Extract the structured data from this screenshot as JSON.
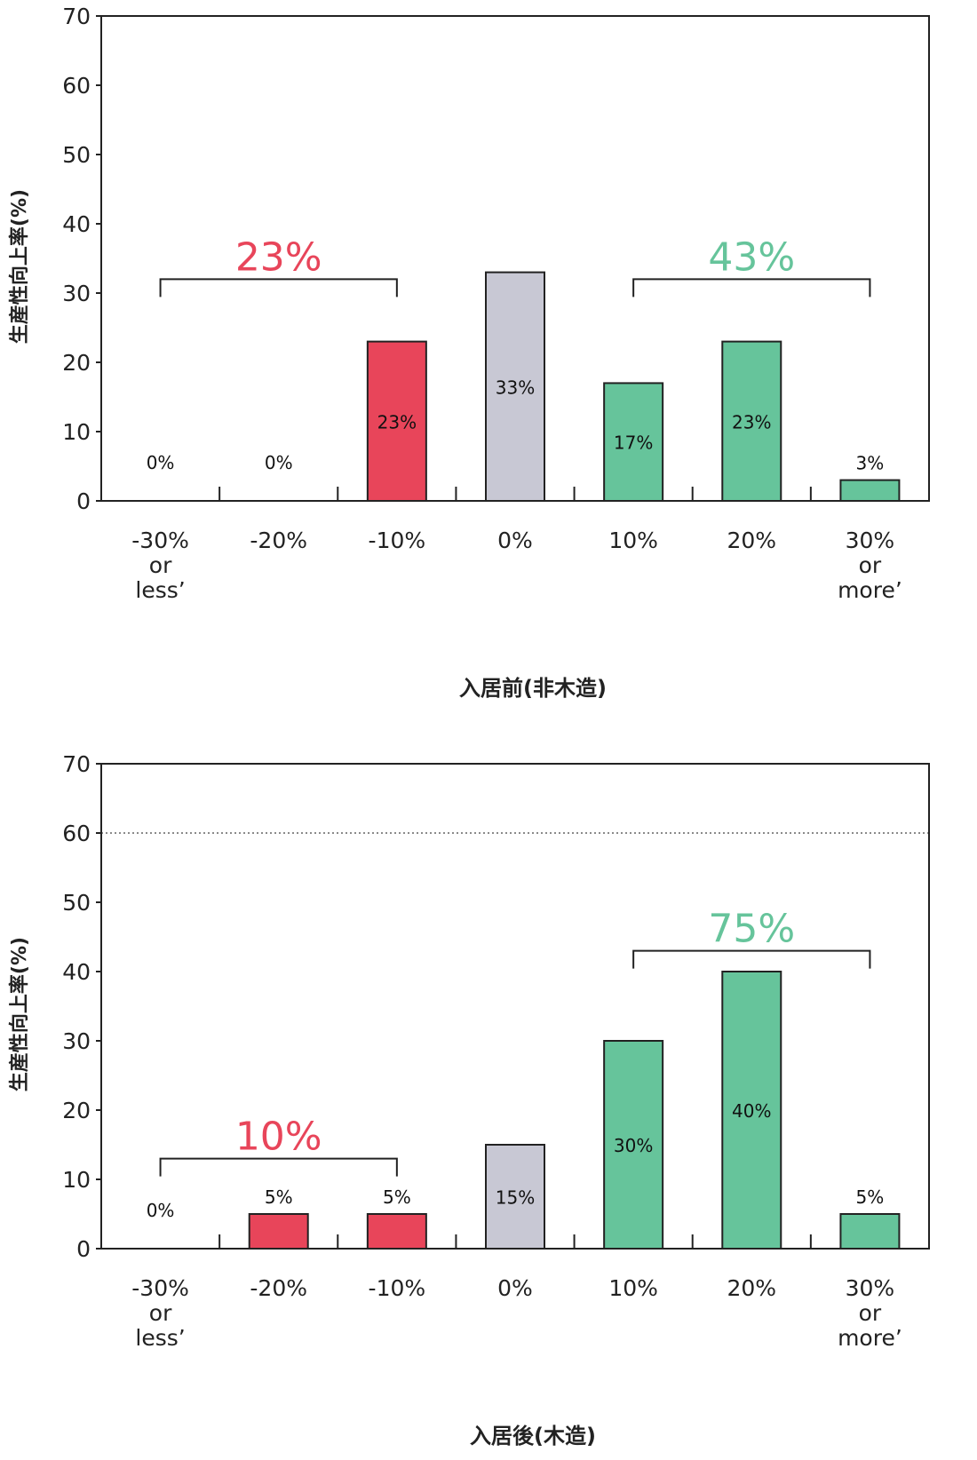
{
  "chart_data": [
    {
      "type": "bar",
      "categories": [
        "-30%\nor\nless’",
        "-20%",
        "-10%",
        "0%",
        "10%",
        "20%",
        "30%\nor\nmore’"
      ],
      "values": [
        0,
        0,
        23,
        33,
        17,
        23,
        3
      ],
      "data_labels": [
        "0%",
        "0%",
        "23%",
        "33%",
        "17%",
        "23%",
        "3%"
      ],
      "bar_colors": [
        "#e8455a",
        "#e8455a",
        "#e8455a",
        "#c8c8d4",
        "#66c49b",
        "#66c49b",
        "#66c49b"
      ],
      "ylim": [
        0,
        70
      ],
      "yticks": [
        0,
        10,
        20,
        30,
        40,
        50,
        60,
        70
      ],
      "ylabel": "生産性向上率(%)",
      "xlabel": "入居前(非木造)",
      "grid": false,
      "brackets": [
        {
          "from": 0,
          "to": 2,
          "level": 32,
          "label": "23%",
          "color": "#e8455a"
        },
        {
          "from": 4,
          "to": 6,
          "level": 32,
          "label": "43%",
          "color": "#66c49b"
        }
      ]
    },
    {
      "type": "bar",
      "categories": [
        "-30%\nor\nless’",
        "-20%",
        "-10%",
        "0%",
        "10%",
        "20%",
        "30%\nor\nmore’"
      ],
      "values": [
        0,
        5,
        5,
        15,
        30,
        40,
        5
      ],
      "data_labels": [
        "0%",
        "5%",
        "5%",
        "15%",
        "30%",
        "40%",
        "5%"
      ],
      "bar_colors": [
        "#e8455a",
        "#e8455a",
        "#e8455a",
        "#c8c8d4",
        "#66c49b",
        "#66c49b",
        "#66c49b"
      ],
      "ylim": [
        0,
        70
      ],
      "yticks": [
        0,
        10,
        20,
        30,
        40,
        50,
        60,
        70
      ],
      "ylabel": "生産性向上率(%)",
      "xlabel": "入居後(木造)",
      "grid": false,
      "reference_line": 60,
      "brackets": [
        {
          "from": 0,
          "to": 2,
          "level": 13,
          "label": "10%",
          "color": "#e8455a"
        },
        {
          "from": 4,
          "to": 6,
          "level": 43,
          "label": "75%",
          "color": "#66c49b"
        }
      ]
    }
  ]
}
